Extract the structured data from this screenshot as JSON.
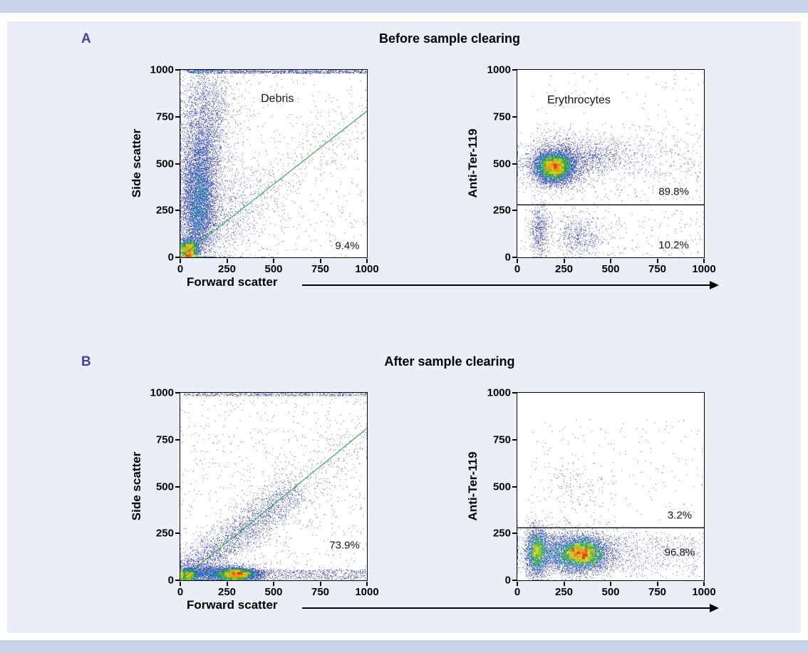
{
  "theme": {
    "accent_bar_color": "#c9d3e7",
    "figure_bg_color": "#e9eef7",
    "plot_bg_color": "#ffffff",
    "panel_label_color": "#483fa0",
    "gate_green": "#2f9e44",
    "gate_black": "#000000",
    "density_colormap": [
      [
        0.0,
        "#1f1f88"
      ],
      [
        0.55,
        "#24309e"
      ],
      [
        0.72,
        "#1f6fb4"
      ],
      [
        0.82,
        "#2ca03c"
      ],
      [
        0.9,
        "#c8d41e"
      ],
      [
        0.96,
        "#f2931b"
      ],
      [
        1.0,
        "#e03d0e"
      ]
    ]
  },
  "panels": [
    {
      "label": "A",
      "title": "Before sample clearing",
      "xlabel": "Forward scatter",
      "left_ylabel": "Side scatter",
      "right_ylabel": "Anti-Ter-119"
    },
    {
      "label": "B",
      "title": "After sample clearing",
      "xlabel": "Forward scatter",
      "left_ylabel": "Side scatter",
      "right_ylabel": "Anti-Ter-119"
    }
  ],
  "chart_data": [
    {
      "type": "scatter",
      "id": "fsc-vs-ssc-before",
      "panel": "A",
      "xlabel": "Forward scatter",
      "ylabel": "Side scatter",
      "xlim": [
        0,
        1000
      ],
      "ylim": [
        0,
        1000
      ],
      "xticks": [
        0,
        250,
        500,
        750,
        1000
      ],
      "yticks": [
        0,
        250,
        500,
        750,
        1000
      ],
      "annotations": [
        {
          "text": "Debris",
          "x": 520,
          "y": 845,
          "size": 16
        },
        {
          "text": "9.4%",
          "x": 895,
          "y": 62,
          "size": 15
        }
      ],
      "gates": [
        {
          "kind": "line",
          "x1": 0,
          "y1": 0,
          "x2": 1000,
          "y2": 780,
          "color": "#2f9e44"
        }
      ],
      "clusters": [
        {
          "type": "gauss",
          "cx": 95,
          "cy": 280,
          "sx": 48,
          "sy": 150,
          "n": 5200
        },
        {
          "type": "gauss",
          "cx": 115,
          "cy": 560,
          "sx": 60,
          "sy": 170,
          "n": 2600
        },
        {
          "type": "gauss",
          "cx": 140,
          "cy": 820,
          "sx": 80,
          "sy": 120,
          "n": 900
        },
        {
          "type": "gauss",
          "cx": 45,
          "cy": 40,
          "sx": 26,
          "sy": 28,
          "n": 2200
        },
        {
          "type": "gauss",
          "cx": 230,
          "cy": 260,
          "sx": 130,
          "sy": 160,
          "n": 900
        },
        {
          "type": "diag",
          "x0": 60,
          "y0": 40,
          "x1": 900,
          "y1": 700,
          "spread": 120,
          "n": 500,
          "bias": 1.6
        },
        {
          "type": "uniform",
          "x0": 0,
          "x1": 1000,
          "y0": 0,
          "y1": 1000,
          "n": 650
        },
        {
          "type": "uniform",
          "x0": 30,
          "x1": 1000,
          "y0": 982,
          "y1": 1000,
          "n": 1000
        }
      ]
    },
    {
      "type": "scatter",
      "id": "ter119-before",
      "panel": "A",
      "xlabel": "Forward scatter",
      "ylabel": "Anti-Ter-119",
      "xlim": [
        0,
        1000
      ],
      "ylim": [
        0,
        1000
      ],
      "xticks": [
        0,
        250,
        500,
        750,
        1000
      ],
      "yticks": [
        0,
        250,
        500,
        750,
        1000
      ],
      "annotations": [
        {
          "text": "Erythrocytes",
          "x": 330,
          "y": 838,
          "size": 16
        },
        {
          "text": "89.8%",
          "x": 838,
          "y": 348,
          "size": 15
        },
        {
          "text": "10.2%",
          "x": 838,
          "y": 63,
          "size": 15
        }
      ],
      "gates": [
        {
          "kind": "line",
          "x1": 0,
          "y1": 280,
          "x2": 1000,
          "y2": 280,
          "color": "#000000"
        }
      ],
      "clusters": [
        {
          "type": "gauss",
          "cx": 195,
          "cy": 480,
          "sx": 50,
          "sy": 40,
          "n": 6000
        },
        {
          "type": "gauss",
          "cx": 230,
          "cy": 495,
          "sx": 100,
          "sy": 70,
          "n": 1800
        },
        {
          "type": "gauss",
          "cx": 400,
          "cy": 540,
          "sx": 150,
          "sy": 50,
          "n": 900
        },
        {
          "type": "gauss",
          "cx": 115,
          "cy": 135,
          "sx": 30,
          "sy": 70,
          "n": 550
        },
        {
          "type": "gauss",
          "cx": 330,
          "cy": 115,
          "sx": 65,
          "sy": 55,
          "n": 520
        },
        {
          "type": "uniform",
          "x0": 70,
          "x1": 1000,
          "y0": 0,
          "y1": 250,
          "n": 260
        },
        {
          "type": "uniform",
          "x0": 70,
          "x1": 1000,
          "y0": 300,
          "y1": 720,
          "n": 380
        },
        {
          "type": "uniform",
          "x0": 600,
          "x1": 1000,
          "y0": 420,
          "y1": 620,
          "n": 120
        },
        {
          "type": "uniform",
          "x0": 80,
          "x1": 1000,
          "y0": 720,
          "y1": 1000,
          "n": 60
        }
      ]
    },
    {
      "type": "scatter",
      "id": "fsc-vs-ssc-after",
      "panel": "B",
      "xlabel": "Forward scatter",
      "ylabel": "Side scatter",
      "xlim": [
        0,
        1000
      ],
      "ylim": [
        0,
        1000
      ],
      "xticks": [
        0,
        250,
        500,
        750,
        1000
      ],
      "yticks": [
        0,
        250,
        500,
        750,
        1000
      ],
      "annotations": [
        {
          "text": "73.9%",
          "x": 880,
          "y": 185,
          "size": 15
        }
      ],
      "gates": [
        {
          "kind": "line",
          "x1": 0,
          "y1": 0,
          "x2": 1000,
          "y2": 810,
          "color": "#2f9e44"
        }
      ],
      "clusters": [
        {
          "type": "gauss",
          "cx": 42,
          "cy": 28,
          "sx": 24,
          "sy": 16,
          "n": 1300
        },
        {
          "type": "gauss",
          "cx": 300,
          "cy": 30,
          "sx": 55,
          "sy": 16,
          "n": 4200
        },
        {
          "type": "gauss",
          "cx": 190,
          "cy": 35,
          "sx": 120,
          "sy": 22,
          "n": 2200
        },
        {
          "type": "uniform",
          "x0": 380,
          "x1": 1000,
          "y0": 2,
          "y1": 55,
          "n": 700
        },
        {
          "type": "diag",
          "x0": 30,
          "y0": 30,
          "x1": 620,
          "y1": 480,
          "spread": 95,
          "n": 2600,
          "bias": 1.5
        },
        {
          "type": "diag",
          "x0": 300,
          "y0": 240,
          "x1": 980,
          "y1": 770,
          "spread": 140,
          "n": 500,
          "bias": 1.2
        },
        {
          "type": "uniform",
          "x0": 0,
          "x1": 1000,
          "y0": 0,
          "y1": 1000,
          "n": 800
        },
        {
          "type": "uniform",
          "x0": 20,
          "x1": 1000,
          "y0": 984,
          "y1": 1000,
          "n": 550
        }
      ]
    },
    {
      "type": "scatter",
      "id": "ter119-after",
      "panel": "B",
      "xlabel": "Forward scatter",
      "ylabel": "Anti-Ter-119",
      "xlim": [
        0,
        1000
      ],
      "ylim": [
        0,
        1000
      ],
      "xticks": [
        0,
        250,
        500,
        750,
        1000
      ],
      "yticks": [
        0,
        250,
        500,
        750,
        1000
      ],
      "annotations": [
        {
          "text": "3.2%",
          "x": 870,
          "y": 345,
          "size": 15
        },
        {
          "text": "96.8%",
          "x": 870,
          "y": 150,
          "size": 15
        }
      ],
      "gates": [
        {
          "kind": "line",
          "x1": 0,
          "y1": 280,
          "x2": 1000,
          "y2": 280,
          "color": "#000000"
        }
      ],
      "clusters": [
        {
          "type": "gauss",
          "cx": 345,
          "cy": 140,
          "sx": 70,
          "sy": 45,
          "n": 5200
        },
        {
          "type": "gauss",
          "cx": 300,
          "cy": 150,
          "sx": 150,
          "sy": 60,
          "n": 1600
        },
        {
          "type": "gauss",
          "cx": 103,
          "cy": 150,
          "sx": 28,
          "sy": 65,
          "n": 2200
        },
        {
          "type": "gauss",
          "cx": 180,
          "cy": 150,
          "sx": 60,
          "sy": 55,
          "n": 800
        },
        {
          "type": "uniform",
          "x0": 60,
          "x1": 1000,
          "y0": 10,
          "y1": 260,
          "n": 500
        },
        {
          "type": "uniform",
          "x0": 500,
          "x1": 980,
          "y0": 60,
          "y1": 230,
          "n": 250
        },
        {
          "type": "gauss",
          "cx": 310,
          "cy": 510,
          "sx": 90,
          "sy": 70,
          "n": 130
        },
        {
          "type": "uniform",
          "x0": 60,
          "x1": 1000,
          "y0": 300,
          "y1": 860,
          "n": 220
        }
      ]
    }
  ]
}
